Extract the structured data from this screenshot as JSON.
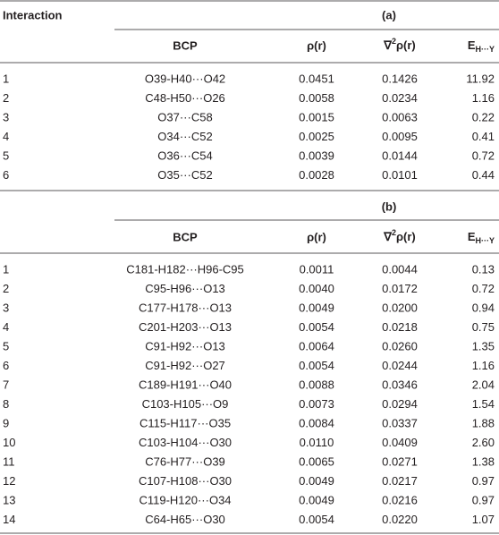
{
  "table": {
    "corner": "Interaction",
    "sections": [
      {
        "label": "(a)",
        "headers": {
          "bcp": "BCP",
          "rho": "ρ(r)",
          "lap": {
            "base": "∇",
            "sup": "2",
            "rest": "ρ(r)"
          },
          "e": {
            "base": "E",
            "sub": "H···Y"
          }
        },
        "rows": [
          [
            "1",
            "O39-H40···O42",
            "0.0451",
            "0.1426",
            "11.92"
          ],
          [
            "2",
            "C48-H50···O26",
            "0.0058",
            "0.0234",
            "1.16"
          ],
          [
            "3",
            "O37···C58",
            "0.0015",
            "0.0063",
            "0.22"
          ],
          [
            "4",
            "O34···C52",
            "0.0025",
            "0.0095",
            "0.41"
          ],
          [
            "5",
            "O36···C54",
            "0.0039",
            "0.0144",
            "0.72"
          ],
          [
            "6",
            "O35···C52",
            "0.0028",
            "0.0101",
            "0.44"
          ]
        ]
      },
      {
        "label": "(b)",
        "headers": {
          "bcp": "BCP",
          "rho": "ρ(r)",
          "lap": {
            "base": "∇",
            "sup": "2",
            "rest": "ρ(r)"
          },
          "e": {
            "base": "E",
            "sub": "H···Y"
          }
        },
        "rows": [
          [
            "1",
            "C181-H182···H96-C95",
            "0.0011",
            "0.0044",
            "0.13"
          ],
          [
            "2",
            "C95-H96···O13",
            "0.0040",
            "0.0172",
            "0.72"
          ],
          [
            "3",
            "C177-H178···O13",
            "0.0049",
            "0.0200",
            "0.94"
          ],
          [
            "4",
            "C201-H203···O13",
            "0.0054",
            "0.0218",
            "0.75"
          ],
          [
            "5",
            "C91-H92···O13",
            "0.0064",
            "0.0260",
            "1.35"
          ],
          [
            "6",
            "C91-H92···O27",
            "0.0054",
            "0.0244",
            "1.16"
          ],
          [
            "7",
            "C189-H191···O40",
            "0.0088",
            "0.0346",
            "2.04"
          ],
          [
            "8",
            "C103-H105···O9",
            "0.0073",
            "0.0294",
            "1.54"
          ],
          [
            "9",
            "C115-H117···O35",
            "0.0084",
            "0.0337",
            "1.88"
          ],
          [
            "10",
            "C103-H104···O30",
            "0.0110",
            "0.0409",
            "2.60"
          ],
          [
            "11",
            "C76-H77···O39",
            "0.0065",
            "0.0271",
            "1.38"
          ],
          [
            "12",
            "C107-H108···O30",
            "0.0049",
            "0.0217",
            "0.97"
          ],
          [
            "13",
            "C119-H120···O34",
            "0.0049",
            "0.0216",
            "0.97"
          ],
          [
            "14",
            "C64-H65···O30",
            "0.0054",
            "0.0220",
            "1.07"
          ]
        ]
      }
    ]
  }
}
